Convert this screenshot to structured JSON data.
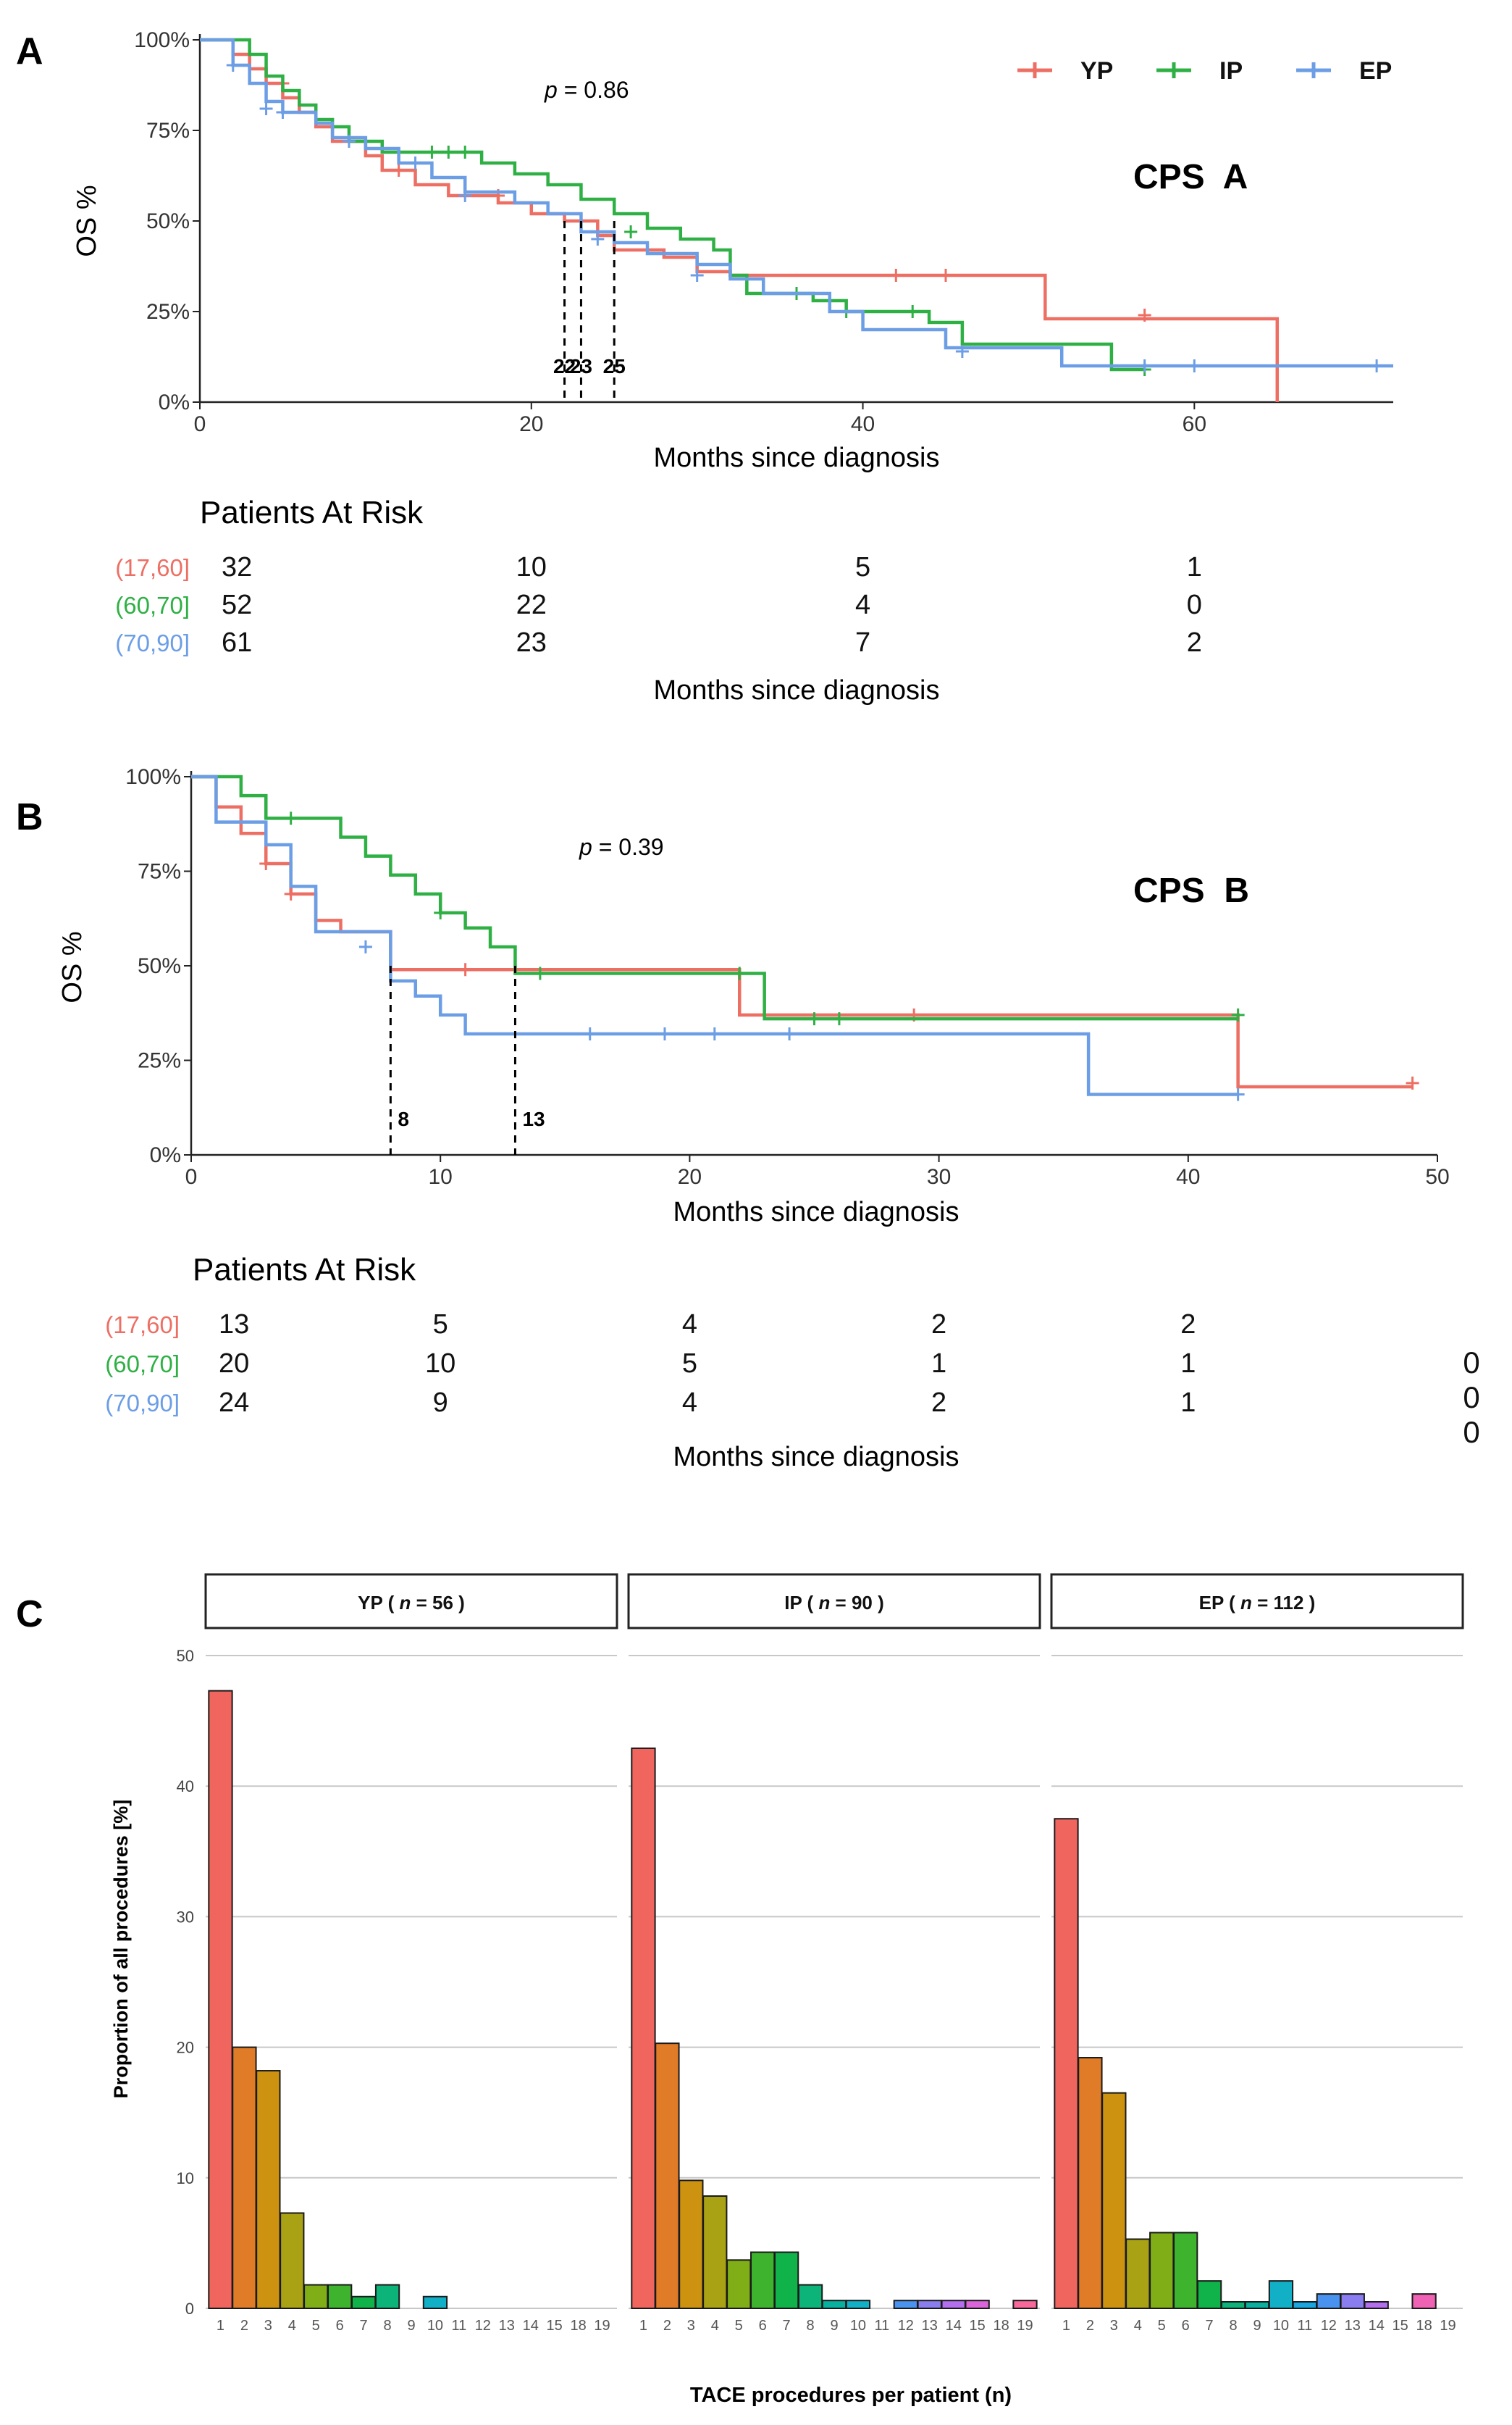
{
  "panel_labels": [
    "A",
    "B",
    "C"
  ],
  "chart_data": [
    {
      "type": "line",
      "panel": "A",
      "title": "CPS  A",
      "ylabel": "OS %",
      "xlabel": "Months since diagnosis",
      "xlim": [
        0,
        72
      ],
      "ylim": [
        0,
        100
      ],
      "xticks": [
        0,
        20,
        40,
        60
      ],
      "yticks": [
        0,
        25,
        50,
        75,
        100
      ],
      "ytick_labels": [
        "0%",
        "25%",
        "50%",
        "75%",
        "100%"
      ],
      "p_value_prefix": "p",
      "p_value_text": " = 0.86",
      "legend_position": "top-right",
      "series": [
        {
          "name": "YP",
          "color": "#ED6F64",
          "steps": [
            [
              0,
              100
            ],
            [
              2,
              96
            ],
            [
              3,
              92
            ],
            [
              4,
              88
            ],
            [
              5,
              84
            ],
            [
              6,
              80
            ],
            [
              7,
              76
            ],
            [
              8,
              72
            ],
            [
              10,
              68
            ],
            [
              11,
              64
            ],
            [
              13,
              60
            ],
            [
              15,
              57
            ],
            [
              18,
              55
            ],
            [
              20,
              52
            ],
            [
              22,
              50
            ],
            [
              24,
              46
            ],
            [
              25,
              42
            ],
            [
              28,
              40
            ],
            [
              30,
              36
            ],
            [
              32,
              35
            ],
            [
              51,
              35
            ],
            [
              51,
              23
            ],
            [
              65,
              23
            ],
            [
              65,
              0
            ]
          ],
          "censored": [
            [
              5,
              88
            ],
            [
              12,
              64
            ],
            [
              18,
              57
            ],
            [
              42,
              35
            ],
            [
              45,
              35
            ],
            [
              57,
              24
            ]
          ]
        },
        {
          "name": "IP",
          "color": "#2FB045",
          "steps": [
            [
              0,
              100
            ],
            [
              3,
              96
            ],
            [
              4,
              90
            ],
            [
              5,
              86
            ],
            [
              6,
              82
            ],
            [
              7,
              78
            ],
            [
              8,
              76
            ],
            [
              9,
              72
            ],
            [
              11,
              69
            ],
            [
              17,
              66
            ],
            [
              19,
              63
            ],
            [
              21,
              60
            ],
            [
              23,
              56
            ],
            [
              25,
              52
            ],
            [
              27,
              48
            ],
            [
              29,
              45
            ],
            [
              31,
              42
            ],
            [
              32,
              35
            ],
            [
              33,
              30
            ],
            [
              37,
              28
            ],
            [
              39,
              25
            ],
            [
              44,
              22
            ],
            [
              46,
              16
            ],
            [
              55,
              16
            ],
            [
              55,
              9
            ],
            [
              57,
              9
            ]
          ],
          "censored": [
            [
              14,
              69
            ],
            [
              15,
              69
            ],
            [
              16,
              69
            ],
            [
              26,
              47
            ],
            [
              36,
              30
            ],
            [
              39,
              25
            ],
            [
              43,
              25
            ],
            [
              57,
              9
            ]
          ]
        },
        {
          "name": "EP",
          "color": "#6C9EE6",
          "steps": [
            [
              0,
              100
            ],
            [
              2,
              93
            ],
            [
              3,
              88
            ],
            [
              4,
              83
            ],
            [
              5,
              80
            ],
            [
              7,
              77
            ],
            [
              8,
              73
            ],
            [
              10,
              70
            ],
            [
              12,
              66
            ],
            [
              14,
              62
            ],
            [
              16,
              58
            ],
            [
              19,
              55
            ],
            [
              21,
              52
            ],
            [
              23,
              47
            ],
            [
              25,
              44
            ],
            [
              27,
              41
            ],
            [
              30,
              38
            ],
            [
              32,
              34
            ],
            [
              34,
              30
            ],
            [
              38,
              25
            ],
            [
              40,
              20
            ],
            [
              45,
              15
            ],
            [
              52,
              10
            ],
            [
              72,
              10
            ]
          ],
          "censored": [
            [
              2,
              93
            ],
            [
              4,
              81
            ],
            [
              5,
              80
            ],
            [
              9,
              72
            ],
            [
              13,
              66
            ],
            [
              16,
              57
            ],
            [
              24,
              45
            ],
            [
              30,
              35
            ],
            [
              46,
              14
            ],
            [
              57,
              10
            ],
            [
              60,
              10
            ],
            [
              71,
              10
            ]
          ]
        }
      ],
      "median_lines": [
        {
          "x": 22,
          "label": "22"
        },
        {
          "x": 23,
          "label": "23"
        },
        {
          "x": 25,
          "label": "25"
        }
      ],
      "risk_table": {
        "title": "Patients At Risk",
        "xlabel": "Months since diagnosis",
        "groups": [
          {
            "label": "(17,60]",
            "color": "#ED6F64",
            "counts": [
              "32",
              "10",
              "5",
              "1"
            ]
          },
          {
            "label": "(60,70]",
            "color": "#2FB045",
            "counts": [
              "52",
              "22",
              "4",
              "0"
            ]
          },
          {
            "label": "(70,90]",
            "color": "#6C9EE6",
            "counts": [
              "61",
              "23",
              "7",
              "2"
            ]
          }
        ]
      }
    },
    {
      "type": "line",
      "panel": "B",
      "title": "CPS  B",
      "ylabel": "OS %",
      "xlabel": "Months since diagnosis",
      "xlim": [
        0,
        50
      ],
      "ylim": [
        0,
        100
      ],
      "xticks": [
        0,
        10,
        20,
        30,
        40,
        50
      ],
      "yticks": [
        0,
        25,
        50,
        75,
        100
      ],
      "ytick_labels": [
        "0%",
        "25%",
        "50%",
        "75%",
        "100%"
      ],
      "p_value_prefix": "p",
      "p_value_text": " = 0.39",
      "series": [
        {
          "name": "YP",
          "color": "#ED6F64",
          "steps": [
            [
              0,
              100
            ],
            [
              1,
              92
            ],
            [
              2,
              85
            ],
            [
              3,
              77
            ],
            [
              4,
              69
            ],
            [
              5,
              62
            ],
            [
              6,
              59
            ],
            [
              8,
              59
            ],
            [
              8,
              49
            ],
            [
              22,
              49
            ],
            [
              22,
              37
            ],
            [
              42,
              37
            ],
            [
              42,
              18
            ],
            [
              49,
              18
            ]
          ],
          "censored": [
            [
              3,
              77
            ],
            [
              4,
              69
            ],
            [
              11,
              49
            ],
            [
              29,
              37
            ],
            [
              49,
              19
            ]
          ]
        },
        {
          "name": "IP",
          "color": "#2FB045",
          "steps": [
            [
              0,
              100
            ],
            [
              2,
              95
            ],
            [
              3,
              89
            ],
            [
              6,
              89
            ],
            [
              6,
              84
            ],
            [
              7,
              79
            ],
            [
              8,
              74
            ],
            [
              9,
              69
            ],
            [
              10,
              64
            ],
            [
              11,
              60
            ],
            [
              12,
              55
            ],
            [
              13,
              55
            ],
            [
              13,
              48
            ],
            [
              23,
              48
            ],
            [
              23,
              36
            ],
            [
              42,
              36
            ]
          ],
          "censored": [
            [
              4,
              89
            ],
            [
              10,
              64
            ],
            [
              14,
              48
            ],
            [
              22,
              48
            ],
            [
              25,
              36
            ],
            [
              26,
              36
            ],
            [
              42,
              37
            ]
          ]
        },
        {
          "name": "EP",
          "color": "#6C9EE6",
          "steps": [
            [
              0,
              100
            ],
            [
              1,
              88
            ],
            [
              3,
              88
            ],
            [
              3,
              82
            ],
            [
              4,
              71
            ],
            [
              5,
              59
            ],
            [
              7,
              59
            ],
            [
              8,
              53
            ],
            [
              8,
              46
            ],
            [
              9,
              42
            ],
            [
              10,
              37
            ],
            [
              11,
              32
            ],
            [
              36,
              32
            ],
            [
              36,
              16
            ],
            [
              42,
              16
            ]
          ],
          "censored": [
            [
              7,
              55
            ],
            [
              16,
              32
            ],
            [
              19,
              32
            ],
            [
              21,
              32
            ],
            [
              24,
              32
            ],
            [
              42,
              16
            ]
          ]
        }
      ],
      "median_lines": [
        {
          "x": 8,
          "label": "8"
        },
        {
          "x": 13,
          "label": "13"
        }
      ],
      "risk_table": {
        "title": "Patients At Risk",
        "xlabel": "Months since diagnosis",
        "groups": [
          {
            "label": "(17,60]",
            "color": "#ED6F64",
            "counts": [
              "13",
              "5",
              "4",
              "2",
              "2"
            ]
          },
          {
            "label": "(60,70]",
            "color": "#2FB045",
            "counts": [
              "20",
              "10",
              "5",
              "1",
              "1"
            ]
          },
          {
            "label": "(70,90]",
            "color": "#6C9EE6",
            "counts": [
              "24",
              "9",
              "4",
              "2",
              "1"
            ]
          }
        ],
        "trailing_counts": [
          "0",
          "0",
          "0"
        ]
      }
    },
    {
      "type": "bar",
      "panel": "C",
      "ylabel": "Proportion of all procedures [%]",
      "xlabel": "TACE procedures per patient (n)",
      "ylim": [
        0,
        50
      ],
      "yticks": [
        0,
        10,
        20,
        30,
        40,
        50
      ],
      "categories": [
        "1",
        "2",
        "3",
        "4",
        "5",
        "6",
        "7",
        "8",
        "9",
        "10",
        "11",
        "12",
        "13",
        "14",
        "15",
        "18",
        "19"
      ],
      "colors": [
        "#F0665E",
        "#E07C28",
        "#CD9310",
        "#A9A214",
        "#7FAE16",
        "#3EB42E",
        "#10B24A",
        "#0DB47A",
        "#08B0A0",
        "#12B0C7",
        "#18A6E2",
        "#4A92EF",
        "#8A7DF0",
        "#B46FEE",
        "#DA64DA",
        "#EF62B4",
        "#F8689A"
      ],
      "facets": [
        {
          "prefix": "YP ( ",
          "n_symbol": "n",
          "suffix": " = 56 )",
          "values": [
            47.3,
            20.0,
            18.2,
            7.3,
            1.8,
            1.8,
            0.9,
            1.8,
            0,
            0.9,
            0,
            0,
            0,
            0,
            0,
            0,
            0
          ]
        },
        {
          "prefix": "IP ( ",
          "n_symbol": "n",
          "suffix": " = 90 )",
          "values": [
            42.9,
            20.3,
            9.8,
            8.6,
            3.7,
            4.3,
            4.3,
            1.8,
            0.6,
            0.6,
            0,
            0.6,
            0.6,
            0.6,
            0.6,
            0,
            0.6
          ]
        },
        {
          "prefix": "EP ( ",
          "n_symbol": "n",
          "suffix": " = 112 )",
          "values": [
            37.5,
            19.2,
            16.5,
            5.3,
            5.8,
            5.8,
            2.1,
            0.5,
            0.5,
            2.1,
            0.5,
            1.1,
            1.1,
            0.5,
            0,
            1.1,
            0
          ]
        }
      ]
    }
  ]
}
